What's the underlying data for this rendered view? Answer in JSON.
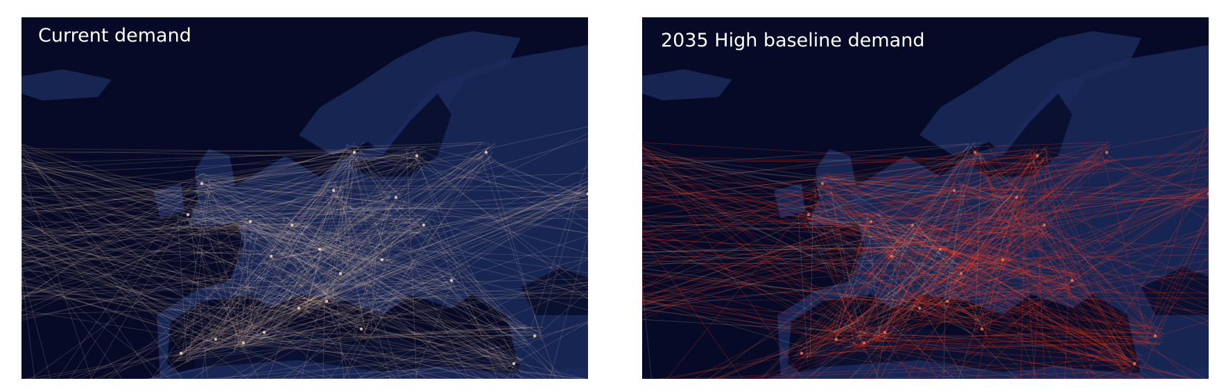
{
  "panels": [
    {
      "title": "Current demand"
    },
    {
      "title": "2035 High baseline demand"
    }
  ]
}
